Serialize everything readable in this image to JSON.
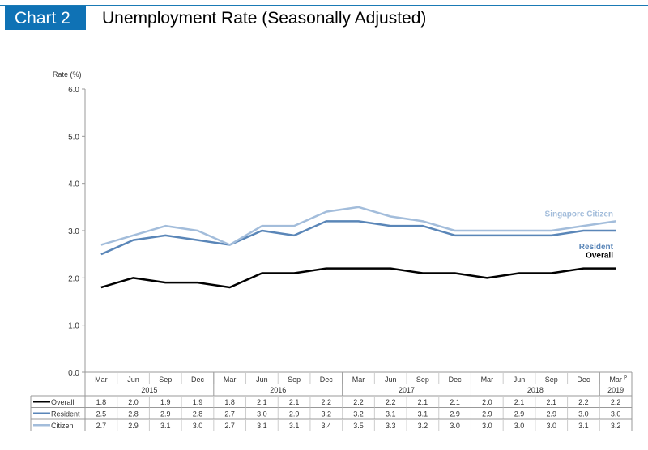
{
  "header": {
    "badge": "Chart 2",
    "title": "Unemployment Rate (Seasonally Adjusted)"
  },
  "colors": {
    "brand": "#0f72b5",
    "overall": "#000000",
    "resident": "#5a86b8",
    "citizen": "#a3bddb"
  },
  "chart_data": {
    "type": "line",
    "title": "Unemployment Rate (Seasonally Adjusted)",
    "ylabel": "Rate (%)",
    "ylim": [
      0,
      6
    ],
    "yticks": [
      "0.0",
      "1.0",
      "2.0",
      "3.0",
      "4.0",
      "5.0",
      "6.0"
    ],
    "categories": [
      "Mar",
      "Jun",
      "Sep",
      "Dec",
      "Mar",
      "Jun",
      "Sep",
      "Dec",
      "Mar",
      "Jun",
      "Sep",
      "Dec",
      "Mar",
      "Jun",
      "Sep",
      "Dec",
      "Mar"
    ],
    "last_category_superscript": "p",
    "years": [
      {
        "label": "2015",
        "span": 4
      },
      {
        "label": "2016",
        "span": 4
      },
      {
        "label": "2017",
        "span": 4
      },
      {
        "label": "2018",
        "span": 4
      },
      {
        "label": "2019",
        "span": 1
      }
    ],
    "series": [
      {
        "name": "Overall",
        "end_label": "Overall",
        "color_key": "overall",
        "values": [
          1.8,
          2.0,
          1.9,
          1.9,
          1.8,
          2.1,
          2.1,
          2.2,
          2.2,
          2.2,
          2.1,
          2.1,
          2.0,
          2.1,
          2.1,
          2.2,
          2.2
        ]
      },
      {
        "name": "Resident",
        "end_label": "Resident",
        "color_key": "resident",
        "values": [
          2.5,
          2.8,
          2.9,
          2.8,
          2.7,
          3.0,
          2.9,
          3.2,
          3.2,
          3.1,
          3.1,
          2.9,
          2.9,
          2.9,
          2.9,
          3.0,
          3.0
        ]
      },
      {
        "name": "Citizen",
        "end_label": "Singapore Citizen",
        "color_key": "citizen",
        "values": [
          2.7,
          2.9,
          3.1,
          3.0,
          2.7,
          3.1,
          3.1,
          3.4,
          3.5,
          3.3,
          3.2,
          3.0,
          3.0,
          3.0,
          3.0,
          3.1,
          3.2
        ]
      }
    ],
    "grid": false,
    "legend": "table-bottom"
  }
}
